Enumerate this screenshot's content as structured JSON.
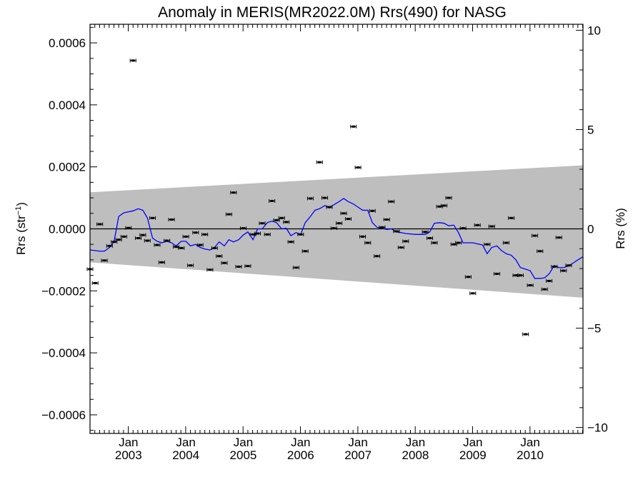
{
  "chart_data": {
    "type": "scatter",
    "title": "Anomaly in MERIS(MR2022.0M) Rrs(490) for NASG",
    "ylabel_left": "Rrs (str",
    "ylabel_left_sup": "−1",
    "ylabel_left_close": ")",
    "ylabel_right": "Rrs (%)",
    "xlim": [
      2002.33,
      2010.92
    ],
    "ylim": [
      -0.00066,
      0.00066
    ],
    "ylim_right": [
      -10.3,
      10.3
    ],
    "y_ticks": [
      {
        "value": 0.0006,
        "label": "0.0006"
      },
      {
        "value": 0.0004,
        "label": "0.0004"
      },
      {
        "value": 0.0002,
        "label": "0.0002"
      },
      {
        "value": 0.0,
        "label": "0.0000"
      },
      {
        "value": -0.0002,
        "label": "−0.0002"
      },
      {
        "value": -0.0004,
        "label": "−0.0004"
      },
      {
        "value": -0.0006,
        "label": "−0.0006"
      }
    ],
    "y_right_ticks": [
      {
        "value": 10,
        "label": "10"
      },
      {
        "value": 5,
        "label": "5"
      },
      {
        "value": 0,
        "label": "0"
      },
      {
        "value": -5,
        "label": "−5"
      },
      {
        "value": -10,
        "label": "−10"
      }
    ],
    "x_ticks": [
      {
        "value": 2003.0,
        "month": "Jan",
        "year": "2003"
      },
      {
        "value": 2004.0,
        "month": "Jan",
        "year": "2004"
      },
      {
        "value": 2005.0,
        "month": "Jan",
        "year": "2005"
      },
      {
        "value": 2006.0,
        "month": "Jan",
        "year": "2006"
      },
      {
        "value": 2007.0,
        "month": "Jan",
        "year": "2007"
      },
      {
        "value": 2008.0,
        "month": "Jan",
        "year": "2008"
      },
      {
        "value": 2009.0,
        "month": "Jan",
        "year": "2009"
      },
      {
        "value": 2010.0,
        "month": "Jan",
        "year": "2010"
      }
    ],
    "band": {
      "upper": [
        [
          2002.33,
          0.000118
        ],
        [
          2010.92,
          0.000205
        ]
      ],
      "lower": [
        [
          2002.33,
          -0.000108
        ],
        [
          2010.92,
          -0.000222
        ]
      ],
      "color": "#bebebe"
    },
    "zero_line": 0,
    "points": [
      [
        2002.33,
        -0.00013
      ],
      [
        2002.42,
        -0.000175
      ],
      [
        2002.5,
        1.5e-05
      ],
      [
        2002.58,
        -0.000102
      ],
      [
        2002.67,
        -5.5e-05
      ],
      [
        2002.75,
        -4.2e-05
      ],
      [
        2002.83,
        -3.5e-05
      ],
      [
        2002.92,
        -2.5e-05
      ],
      [
        2003.0,
        3e-06
      ],
      [
        2003.08,
        0.000543
      ],
      [
        2003.17,
        -3e-05
      ],
      [
        2003.25,
        -2e-05
      ],
      [
        2003.33,
        -3.8e-05
      ],
      [
        2003.42,
        3.5e-05
      ],
      [
        2003.5,
        -5.2e-05
      ],
      [
        2003.58,
        -0.000108
      ],
      [
        2003.67,
        -3.8e-05
      ],
      [
        2003.75,
        3e-05
      ],
      [
        2003.83,
        -5.8e-05
      ],
      [
        2003.92,
        -6.2e-05
      ],
      [
        2004.0,
        -2.5e-05
      ],
      [
        2004.08,
        -0.000118
      ],
      [
        2004.17,
        -1.2e-05
      ],
      [
        2004.25,
        -5.2e-05
      ],
      [
        2004.33,
        -1.8e-05
      ],
      [
        2004.42,
        -0.000132
      ],
      [
        2004.5,
        -6.2e-05
      ],
      [
        2004.58,
        -8.8e-05
      ],
      [
        2004.67,
        -0.00011
      ],
      [
        2004.75,
        4.7e-05
      ],
      [
        2004.83,
        0.000117
      ],
      [
        2004.92,
        -0.000122
      ],
      [
        2005.0,
        2e-06
      ],
      [
        2005.08,
        -0.00012
      ],
      [
        2005.17,
        -1.8e-05
      ],
      [
        2005.25,
        -1.5e-05
      ],
      [
        2005.33,
        1.8e-05
      ],
      [
        2005.42,
        -1.8e-05
      ],
      [
        2005.5,
        9e-05
      ],
      [
        2005.58,
        2.8e-05
      ],
      [
        2005.67,
        3.5e-05
      ],
      [
        2005.75,
        2.2e-05
      ],
      [
        2005.83,
        -4.2e-05
      ],
      [
        2005.92,
        -0.000125
      ],
      [
        2006.0,
        -1.8e-05
      ],
      [
        2006.08,
        -7.2e-05
      ],
      [
        2006.17,
        9.8e-05
      ],
      [
        2006.33,
        0.000215
      ],
      [
        2006.42,
        0.0001
      ],
      [
        2006.5,
        7e-05
      ],
      [
        2006.58,
        2e-06
      ],
      [
        2006.67,
        1.8e-05
      ],
      [
        2006.75,
        5e-05
      ],
      [
        2006.83,
        3.2e-05
      ],
      [
        2006.92,
        0.00033
      ],
      [
        2007.0,
        0.000198
      ],
      [
        2007.08,
        -2.5e-05
      ],
      [
        2007.17,
        -4.5e-05
      ],
      [
        2007.25,
        5.8e-05
      ],
      [
        2007.33,
        -8.8e-05
      ],
      [
        2007.42,
        5e-06
      ],
      [
        2007.5,
        3e-05
      ],
      [
        2007.58,
        8.8e-05
      ],
      [
        2007.67,
        -8e-06
      ],
      [
        2007.75,
        -6e-05
      ],
      [
        2007.83,
        -4e-05
      ],
      [
        2008.17,
        -1e-05
      ],
      [
        2008.25,
        -3e-05
      ],
      [
        2008.33,
        -4.5e-05
      ],
      [
        2008.42,
        7.2e-05
      ],
      [
        2008.5,
        7.5e-05
      ],
      [
        2008.58,
        0.0001
      ],
      [
        2008.67,
        -5e-05
      ],
      [
        2008.75,
        -4.5e-05
      ],
      [
        2008.83,
        2e-06
      ],
      [
        2008.92,
        -0.000155
      ],
      [
        2009.0,
        -0.000208
      ],
      [
        2009.08,
        1.2e-05
      ],
      [
        2009.25,
        -5e-05
      ],
      [
        2009.33,
        8e-06
      ],
      [
        2009.42,
        -0.000145
      ],
      [
        2009.58,
        -4.5e-05
      ],
      [
        2009.67,
        3.5e-05
      ],
      [
        2009.75,
        -0.00015
      ],
      [
        2009.83,
        -0.00015
      ],
      [
        2009.92,
        -0.00034
      ],
      [
        2010.0,
        -0.000182
      ],
      [
        2010.08,
        -2.2e-05
      ],
      [
        2010.17,
        -7.2e-05
      ],
      [
        2010.25,
        -0.000195
      ],
      [
        2010.33,
        -0.000168
      ],
      [
        2010.42,
        -0.000122
      ],
      [
        2010.5,
        -2.8e-05
      ],
      [
        2010.58,
        -0.000135
      ],
      [
        2010.67,
        -0.000118
      ]
    ],
    "running_mean": {
      "color": "#0000ff",
      "points": [
        [
          2002.33,
          -6.8e-05
        ],
        [
          2002.5,
          -7.2e-05
        ],
        [
          2002.58,
          -7.2e-05
        ],
        [
          2002.67,
          -6e-05
        ],
        [
          2002.75,
          -4e-05
        ],
        [
          2002.83,
          4e-05
        ],
        [
          2002.92,
          5.2e-05
        ],
        [
          2003.0,
          5.5e-05
        ],
        [
          2003.08,
          5.8e-05
        ],
        [
          2003.17,
          6.5e-05
        ],
        [
          2003.25,
          6e-05
        ],
        [
          2003.33,
          3.5e-05
        ],
        [
          2003.42,
          -3e-05
        ],
        [
          2003.5,
          -4e-05
        ],
        [
          2003.58,
          -4.5e-05
        ],
        [
          2003.67,
          -4e-05
        ],
        [
          2003.75,
          -4.5e-05
        ],
        [
          2003.83,
          -5.5e-05
        ],
        [
          2003.92,
          -4e-05
        ],
        [
          2004.0,
          -4e-05
        ],
        [
          2004.08,
          -5.5e-05
        ],
        [
          2004.17,
          -5e-05
        ],
        [
          2004.25,
          -6e-05
        ],
        [
          2004.33,
          -6.5e-05
        ],
        [
          2004.42,
          -6.8e-05
        ],
        [
          2004.5,
          -6e-05
        ],
        [
          2004.58,
          -4.2e-05
        ],
        [
          2004.67,
          -5.5e-05
        ],
        [
          2004.75,
          -3.5e-05
        ],
        [
          2004.83,
          -4.2e-05
        ],
        [
          2004.92,
          -3.5e-05
        ],
        [
          2005.0,
          -2e-05
        ],
        [
          2005.08,
          -1e-05
        ],
        [
          2005.17,
          -3.5e-05
        ],
        [
          2005.25,
          0.0
        ],
        [
          2005.33,
          0.0
        ],
        [
          2005.42,
          2e-05
        ],
        [
          2005.5,
          2.5e-05
        ],
        [
          2005.58,
          2e-05
        ],
        [
          2005.67,
          0.0
        ],
        [
          2005.75,
          2e-06
        ],
        [
          2005.83,
          -2.2e-05
        ],
        [
          2005.92,
          -1.2e-05
        ],
        [
          2006.0,
          -1.8e-05
        ],
        [
          2006.08,
          2e-05
        ],
        [
          2006.17,
          4e-05
        ],
        [
          2006.25,
          6e-05
        ],
        [
          2006.33,
          6.5e-05
        ],
        [
          2006.42,
          7.5e-05
        ],
        [
          2006.5,
          7e-05
        ],
        [
          2006.58,
          7.8e-05
        ],
        [
          2006.67,
          8.8e-05
        ],
        [
          2006.75,
          9.8e-05
        ],
        [
          2006.83,
          8.8e-05
        ],
        [
          2006.92,
          8e-05
        ],
        [
          2007.0,
          7e-05
        ],
        [
          2007.08,
          6e-05
        ],
        [
          2007.17,
          6e-05
        ],
        [
          2007.25,
          2e-05
        ],
        [
          2007.33,
          5e-06
        ],
        [
          2007.42,
          2e-06
        ],
        [
          2007.5,
          -2e-06
        ],
        [
          2007.58,
          0.0
        ],
        [
          2007.67,
          -1e-05
        ],
        [
          2007.75,
          -1.2e-05
        ],
        [
          2007.83,
          -1.5e-05
        ],
        [
          2008.0,
          -1.8e-05
        ],
        [
          2008.17,
          -1.8e-05
        ],
        [
          2008.25,
          -1e-05
        ],
        [
          2008.33,
          1.8e-05
        ],
        [
          2008.42,
          2e-05
        ],
        [
          2008.5,
          1.8e-05
        ],
        [
          2008.58,
          1e-05
        ],
        [
          2008.67,
          1.2e-05
        ],
        [
          2008.75,
          -1.2e-05
        ],
        [
          2008.83,
          -4.5e-05
        ],
        [
          2009.0,
          -4.5e-05
        ],
        [
          2009.17,
          -5.2e-05
        ],
        [
          2009.25,
          -8e-05
        ],
        [
          2009.33,
          -6e-05
        ],
        [
          2009.42,
          -5.5e-05
        ],
        [
          2009.5,
          -7e-05
        ],
        [
          2009.58,
          -8e-05
        ],
        [
          2009.67,
          -8.5e-05
        ],
        [
          2009.75,
          -0.0001
        ],
        [
          2009.83,
          -0.000125
        ],
        [
          2009.92,
          -0.00013
        ],
        [
          2010.0,
          -0.000135
        ],
        [
          2010.08,
          -0.00016
        ],
        [
          2010.17,
          -0.00016
        ],
        [
          2010.25,
          -0.000158
        ],
        [
          2010.33,
          -0.000145
        ],
        [
          2010.42,
          -0.000118
        ],
        [
          2010.5,
          -0.000125
        ],
        [
          2010.58,
          -0.000125
        ],
        [
          2010.67,
          -0.00012
        ],
        [
          2010.75,
          -0.00011
        ],
        [
          2010.83,
          -0.0001
        ],
        [
          2010.92,
          -9e-05
        ]
      ]
    }
  }
}
